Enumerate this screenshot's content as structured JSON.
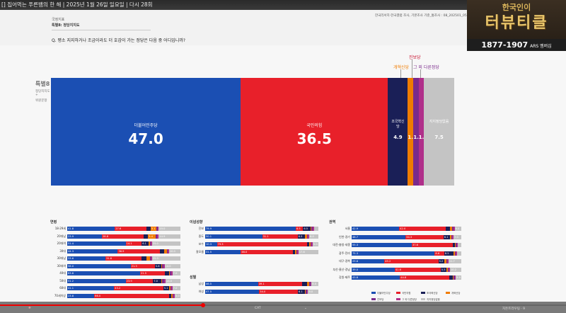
{
  "video_title": "[] 집어먹는 푸른뱀의 한 해 | 2025년 1월 26일 일요일 | 다시 28회",
  "header": {
    "small_label": "국정지표",
    "tag": "특별8: 정당지지도",
    "question": "Q. 평소 지지하거나 조금이라도 더 호감이 가는 정당은 다음 중 어디입니까?",
    "source": "한국리서치·한국갤럽 조사, 기본조사 기준_통조사 : 08_202501_05"
  },
  "logo": {
    "top": "한국인이",
    "main": "터뷰티클",
    "year": "1877-1907",
    "ars": "ARS 멤버십"
  },
  "side": {
    "label": "특별8",
    "sub1": "정당지지도",
    "sub2": "위원문항"
  },
  "chart_data": {
    "type": "bar",
    "title": "",
    "categories": [
      "더불어민주당",
      "국민의힘",
      "조국혁신당",
      "개혁신당",
      "진보당",
      "그 외 다른정당",
      "지지정당없음"
    ],
    "values": [
      47.0,
      36.5,
      4.9,
      1.4,
      1.3,
      1.3,
      7.5
    ],
    "labels": [
      "47.0",
      "36.5",
      "4.9",
      "1.4",
      "1.3",
      "1.3",
      "7.5"
    ],
    "colors": [
      "#1b4fb3",
      "#e8202a",
      "#1a1f57",
      "#f07c00",
      "#7a2a8c",
      "#b02f8a",
      "#c4c4c4"
    ],
    "top_labels": {
      "kaehyuk": "개혁신당",
      "jinbo": "진보당",
      "other": "그 외 다른정당"
    },
    "ylim": [
      0,
      100
    ]
  },
  "panels": {
    "age": {
      "title": "연령",
      "rows": [
        {
          "label": "18-29세",
          "values": [
            41.8,
            27.6,
            4.0,
            5.1,
            1.0,
            1.0,
            19.0
          ]
        },
        {
          "label": "20대남",
          "values": [
            23.9,
            28.8,
            3.0,
            5.4,
            1.0,
            1.0,
            14.9
          ]
        },
        {
          "label": "20대여",
          "values": [
            51.4,
            14.1,
            6.1,
            1.0,
            1.0,
            1.0,
            25.0
          ]
        },
        {
          "label": "30대",
          "values": [
            44.3,
            36.9,
            4.0,
            2.0,
            1.0,
            1.0,
            10.0
          ]
        },
        {
          "label": "30대남",
          "values": [
            33.6,
            31.8,
            4.0,
            3.0,
            1.0,
            1.0,
            25.0
          ]
        },
        {
          "label": "30대여",
          "values": [
            56.0,
            21.3,
            5.6,
            1.0,
            1.0,
            1.0,
            14.0
          ]
        },
        {
          "label": "40대",
          "values": [
            63.8,
            21.5,
            3.8,
            1.0,
            1.0,
            1.0,
            7.0
          ]
        },
        {
          "label": "50대",
          "values": [
            51.2,
            23.9,
            7.0,
            1.0,
            2.0,
            1.0,
            13.0
          ]
        },
        {
          "label": "60대",
          "values": [
            41.1,
            43.2,
            5.1,
            1.0,
            1.0,
            1.0,
            7.0
          ]
        },
        {
          "label": "70세이상",
          "values": [
            23.8,
            66.0,
            2.0,
            1.0,
            1.0,
            1.0,
            5.0
          ]
        }
      ]
    },
    "ideology": {
      "title": "이념성향",
      "rows": [
        {
          "label": "진보",
          "values": [
            79.9,
            6.5,
            6.5,
            1.0,
            1.0,
            1.0,
            4.0
          ]
        },
        {
          "label": "중도",
          "values": [
            50.1,
            31.1,
            6.3,
            2.0,
            1.0,
            1.0,
            8.0
          ]
        },
        {
          "label": "보수",
          "values": [
            10.3,
            79.3,
            2.0,
            1.0,
            1.0,
            1.0,
            5.0
          ]
        },
        {
          "label": "잘모름",
          "values": [
            31.5,
            46.0,
            2.0,
            1.0,
            1.0,
            1.0,
            17.6
          ]
        }
      ]
    },
    "gender": {
      "title": "성별",
      "rows": [
        {
          "label": "남성",
          "values": [
            46.5,
            39.1,
            4.0,
            2.0,
            1.0,
            1.0,
            6.0
          ]
        },
        {
          "label": "여성",
          "values": [
            47.5,
            34.0,
            6.1,
            1.0,
            1.0,
            1.0,
            9.0
          ]
        }
      ]
    },
    "region": {
      "title": "권역",
      "rows": [
        {
          "label": "서울",
          "values": [
            42.9,
            42.0,
            4.0,
            2.0,
            1.0,
            1.0,
            6.0
          ]
        },
        {
          "label": "인천·경기",
          "values": [
            48.7,
            34.3,
            6.1,
            1.0,
            1.0,
            1.0,
            7.0
          ]
        },
        {
          "label": "대전·충청·세종",
          "values": [
            55.3,
            37.6,
            2.0,
            1.0,
            1.0,
            1.0,
            3.0
          ]
        },
        {
          "label": "광주·전라",
          "values": [
            75.3,
            8.6,
            8.5,
            1.0,
            1.0,
            1.0,
            4.0
          ]
        },
        {
          "label": "대구·경북",
          "values": [
            29.8,
            49.2,
            5.2,
            2.0,
            1.0,
            1.0,
            11.7
          ]
        },
        {
          "label": "부산·울산·경남",
          "values": [
            39.0,
            41.6,
            5.5,
            1.0,
            1.0,
            1.0,
            10.2
          ]
        },
        {
          "label": "강원·제주",
          "values": [
            43.8,
            44.8,
            3.0,
            1.0,
            1.0,
            1.0,
            5.0
          ]
        }
      ]
    }
  },
  "legend": [
    "더불어민주당",
    "국민의힘",
    "조국혁신당",
    "개혁신당",
    "진보당",
    "그 외 다른정당",
    "지지정당없음"
  ],
  "player": {
    "center": "CAT",
    "right": "자돈트라우팅 · 9"
  }
}
